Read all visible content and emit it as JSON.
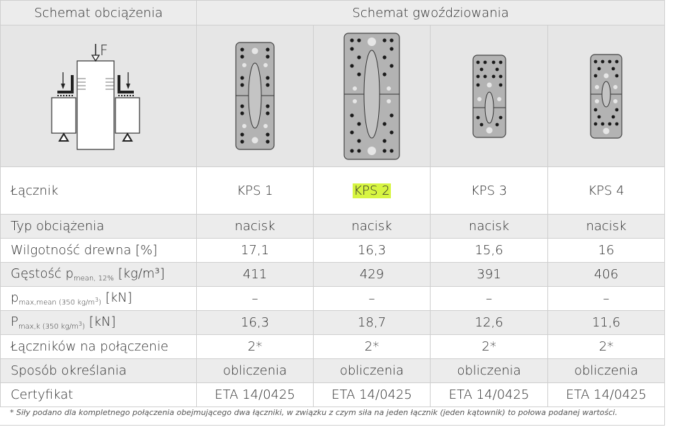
{
  "header": {
    "col1": "Schemat obciążenia",
    "col2": "Schemat gwoździowania"
  },
  "diagram": {
    "force_label": "F"
  },
  "connectors": {
    "label": "Łącznik",
    "names": [
      "KPS 1",
      "KPS 2",
      "KPS 3",
      "KPS 4"
    ],
    "highlight_color": "#d7f542"
  },
  "rows": {
    "load_type": {
      "label": "Typ obciążenia",
      "values": [
        "nacisk",
        "nacisk",
        "nacisk",
        "nacisk"
      ]
    },
    "moisture": {
      "label": "Wilgotność drewna [%]",
      "values": [
        "17,1",
        "16,3",
        "15,6",
        "16"
      ]
    },
    "density": {
      "label_main": "Gęstość p",
      "label_sub": "mean, 12%",
      "label_unit": " [kg/m³]",
      "values": [
        "411",
        "429",
        "391",
        "406"
      ]
    },
    "pmax_mean": {
      "label_main": "p",
      "label_sub": "max,mean (350 kg/m",
      "label_sup": "3",
      "label_sub_end": ")",
      "label_unit": " [kN]",
      "values": [
        "–",
        "–",
        "–",
        "–"
      ]
    },
    "pmax_k": {
      "label_main": "P",
      "label_sub": "max,k (350 kg/m",
      "label_sup": "3",
      "label_sub_end": ")",
      "label_unit": " [kN]",
      "values": [
        "16,3",
        "18,7",
        "12,6",
        "11,6"
      ]
    },
    "count": {
      "label": "Łączników na połączenie",
      "values": [
        "2*",
        "2*",
        "2*",
        "2*"
      ]
    },
    "method": {
      "label": "Sposób określania",
      "values": [
        "obliczenia",
        "obliczenia",
        "obliczenia",
        "obliczenia"
      ]
    },
    "certificate": {
      "label": "Certyfikat",
      "values": [
        "ETA 14/0425",
        "ETA 14/0425",
        "ETA 14/0425",
        "ETA 14/0425"
      ]
    }
  },
  "footnote": "* Siły podano dla kompletnego połączenia obejmującego dwa łączniki, w związku z czym siła na jeden łącznik (jeden kątownik) to połowa podanej wartości."
}
